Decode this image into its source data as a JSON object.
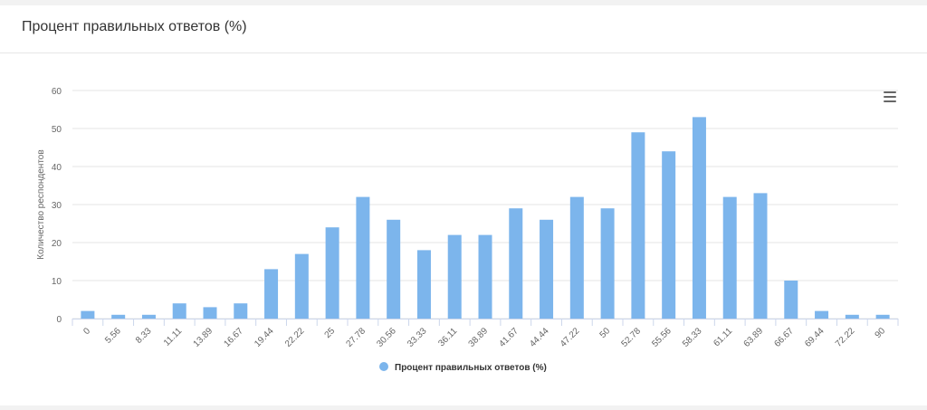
{
  "page": {
    "title": "Процент правильных ответов (%)"
  },
  "menu": {
    "icon": "hamburger-menu-icon"
  },
  "colors": {
    "bar": "#7cb5ec",
    "grid": "#e6e6e6",
    "axis_text": "#666666",
    "legend_text": "#333333"
  },
  "chart_data": {
    "type": "bar",
    "title": "",
    "xlabel": "",
    "ylabel": "Количество респондентов",
    "ylim": [
      0,
      60
    ],
    "yticks": [
      0,
      10,
      20,
      30,
      40,
      50,
      60
    ],
    "grid": true,
    "legend_placement": "bottom-center",
    "categories": [
      "0",
      "5.56",
      "8.33",
      "11.11",
      "13.89",
      "16.67",
      "19.44",
      "22.22",
      "25",
      "27.78",
      "30.56",
      "33.33",
      "36.11",
      "38.89",
      "41.67",
      "44.44",
      "47.22",
      "50",
      "52.78",
      "55.56",
      "58.33",
      "61.11",
      "63.89",
      "66.67",
      "69.44",
      "72.22",
      "90"
    ],
    "series": [
      {
        "name": "Процент правильных ответов (%)",
        "values": [
          2,
          1,
          1,
          4,
          3,
          4,
          13,
          17,
          24,
          32,
          26,
          18,
          22,
          22,
          29,
          26,
          32,
          29,
          49,
          44,
          53,
          32,
          33,
          10,
          2,
          1,
          1
        ]
      }
    ]
  }
}
